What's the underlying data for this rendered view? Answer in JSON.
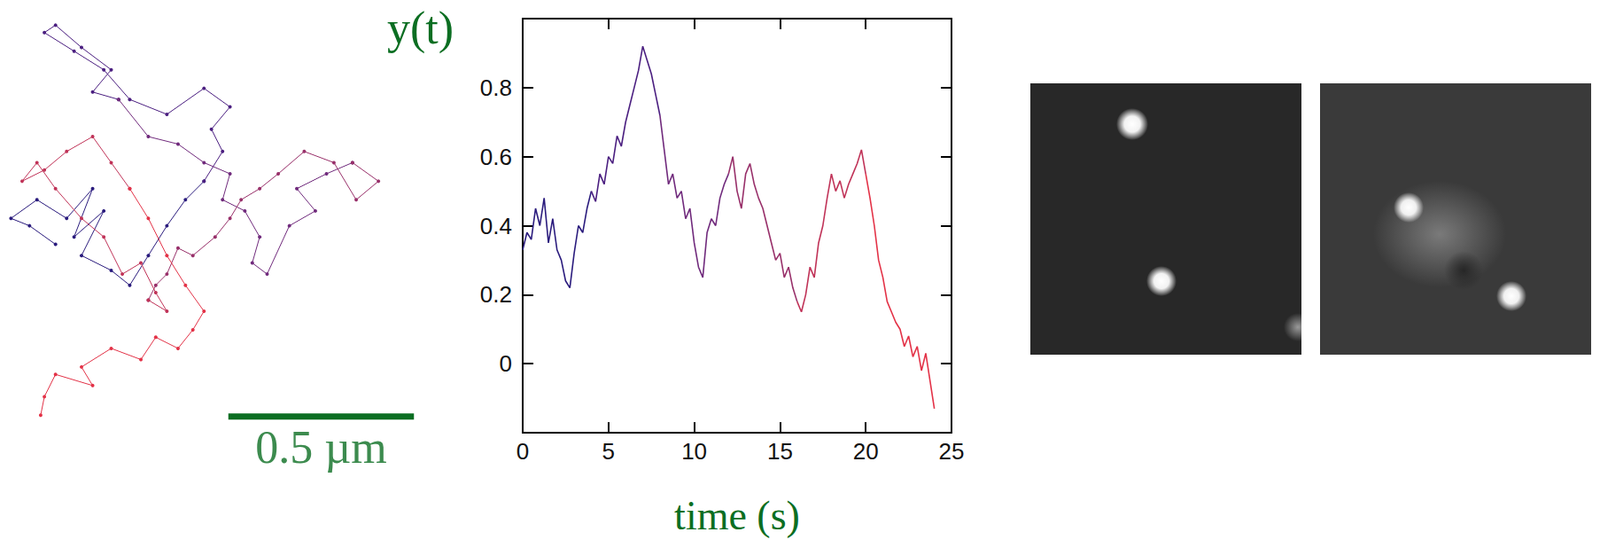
{
  "chart_data": [
    {
      "type": "line",
      "marker": "circle",
      "tick_labels": false,
      "scale_bar": {
        "length": 0.5,
        "label": "0.5 µm"
      },
      "series": [
        {
          "color": "#2a1b7d",
          "x": [
            0.15,
            0.08,
            0.03,
            0.1,
            0.18,
            0.25,
            0.2,
            0.28,
            0.22,
            0.3,
            0.35,
            0.4,
            0.45,
            0.5,
            0.55
          ],
          "values": [
            0.33,
            0.38,
            0.4,
            0.45,
            0.4,
            0.48,
            0.35,
            0.42,
            0.3,
            0.26,
            0.22,
            0.3,
            0.38,
            0.45,
            0.5
          ]
        },
        {
          "color": "#4b1f80",
          "x": [
            0.55,
            0.6,
            0.57,
            0.62,
            0.55,
            0.45,
            0.35,
            0.28,
            0.2,
            0.12,
            0.15,
            0.22,
            0.3,
            0.25,
            0.32
          ],
          "values": [
            0.5,
            0.58,
            0.64,
            0.7,
            0.75,
            0.68,
            0.72,
            0.8,
            0.85,
            0.9,
            0.92,
            0.86,
            0.8,
            0.74,
            0.72
          ]
        },
        {
          "color": "#702a7c",
          "x": [
            0.32,
            0.4,
            0.48,
            0.55,
            0.62,
            0.6,
            0.66,
            0.7,
            0.68,
            0.72,
            0.78,
            0.85,
            0.8,
            0.88,
            0.95
          ],
          "values": [
            0.72,
            0.62,
            0.6,
            0.55,
            0.52,
            0.45,
            0.42,
            0.35,
            0.28,
            0.25,
            0.38,
            0.42,
            0.48,
            0.52,
            0.55
          ]
        },
        {
          "color": "#98306a",
          "x": [
            0.95,
            1.02,
            0.96,
            0.9,
            0.82,
            0.75,
            0.7,
            0.65,
            0.62,
            0.58,
            0.52,
            0.48,
            0.45,
            0.42,
            0.4
          ],
          "values": [
            0.55,
            0.5,
            0.45,
            0.55,
            0.58,
            0.52,
            0.48,
            0.45,
            0.4,
            0.35,
            0.3,
            0.32,
            0.25,
            0.22,
            0.18
          ]
        },
        {
          "color": "#c03358",
          "x": [
            0.4,
            0.45,
            0.42,
            0.38,
            0.33,
            0.28,
            0.22,
            0.15,
            0.1,
            0.06,
            0.12,
            0.18,
            0.25,
            0.3,
            0.35
          ],
          "values": [
            0.18,
            0.15,
            0.2,
            0.28,
            0.25,
            0.35,
            0.4,
            0.48,
            0.55,
            0.5,
            0.53,
            0.58,
            0.62,
            0.55,
            0.48
          ]
        },
        {
          "color": "#e33247",
          "x": [
            0.35,
            0.4,
            0.45,
            0.5,
            0.55,
            0.52,
            0.48,
            0.42,
            0.38,
            0.3,
            0.22,
            0.25,
            0.15,
            0.12,
            0.11
          ],
          "values": [
            0.48,
            0.4,
            0.3,
            0.22,
            0.15,
            0.1,
            0.05,
            0.08,
            0.02,
            0.05,
            0.0,
            -0.05,
            -0.02,
            -0.08,
            -0.13
          ]
        }
      ]
    },
    {
      "type": "line",
      "y_label": "y(t)",
      "x_label": "time (s)",
      "xlim": [
        0,
        25
      ],
      "xticks": [
        0,
        5,
        10,
        15,
        20,
        25
      ],
      "ylim": [
        -0.2,
        1.0
      ],
      "yticks": [
        0,
        0.2,
        0.4,
        0.6,
        0.8
      ],
      "grid": false,
      "series": [
        {
          "color": "#2a1b7d",
          "x": [
            0,
            0.25,
            0.5,
            0.75,
            1,
            1.25,
            1.5,
            1.75,
            2,
            2.25,
            2.5,
            2.75,
            3,
            3.25,
            3.5,
            3.75,
            4
          ],
          "values": [
            0.33,
            0.38,
            0.36,
            0.45,
            0.4,
            0.48,
            0.35,
            0.42,
            0.33,
            0.3,
            0.24,
            0.22,
            0.32,
            0.4,
            0.38,
            0.45,
            0.5
          ]
        },
        {
          "color": "#4b1f80",
          "x": [
            4,
            4.25,
            4.5,
            4.75,
            5,
            5.25,
            5.5,
            5.75,
            6,
            6.25,
            6.5,
            6.75,
            7,
            7.25,
            7.5,
            7.75,
            8
          ],
          "values": [
            0.5,
            0.47,
            0.55,
            0.52,
            0.6,
            0.58,
            0.66,
            0.63,
            0.7,
            0.75,
            0.8,
            0.85,
            0.92,
            0.88,
            0.84,
            0.78,
            0.72
          ]
        },
        {
          "color": "#702a7c",
          "x": [
            8,
            8.25,
            8.5,
            8.75,
            9,
            9.25,
            9.5,
            9.75,
            10,
            10.25,
            10.5,
            10.75,
            11,
            11.25,
            11.5,
            11.75,
            12
          ],
          "values": [
            0.72,
            0.62,
            0.52,
            0.55,
            0.48,
            0.5,
            0.42,
            0.45,
            0.35,
            0.28,
            0.25,
            0.38,
            0.42,
            0.4,
            0.48,
            0.52,
            0.55
          ]
        },
        {
          "color": "#98306a",
          "x": [
            12,
            12.25,
            12.5,
            12.75,
            13,
            13.25,
            13.5,
            13.75,
            14,
            14.25,
            14.5,
            14.75,
            15,
            15.25,
            15.5,
            15.75,
            16
          ],
          "values": [
            0.55,
            0.6,
            0.5,
            0.45,
            0.55,
            0.58,
            0.52,
            0.48,
            0.45,
            0.4,
            0.35,
            0.3,
            0.32,
            0.25,
            0.28,
            0.22,
            0.18
          ]
        },
        {
          "color": "#c03358",
          "x": [
            16,
            16.25,
            16.5,
            16.75,
            17,
            17.25,
            17.5,
            17.75,
            18,
            18.25,
            18.5,
            18.75,
            19,
            19.25,
            19.5,
            19.75,
            20
          ],
          "values": [
            0.18,
            0.15,
            0.2,
            0.28,
            0.25,
            0.35,
            0.4,
            0.48,
            0.55,
            0.5,
            0.53,
            0.48,
            0.52,
            0.55,
            0.58,
            0.62,
            0.55
          ]
        },
        {
          "color": "#e33247",
          "x": [
            20,
            20.25,
            20.5,
            20.75,
            21,
            21.25,
            21.5,
            21.75,
            22,
            22.25,
            22.5,
            22.75,
            23,
            23.25,
            23.5,
            23.75,
            24
          ],
          "values": [
            0.55,
            0.48,
            0.4,
            0.3,
            0.25,
            0.18,
            0.15,
            0.12,
            0.1,
            0.05,
            0.08,
            0.02,
            0.05,
            -0.02,
            0.03,
            -0.05,
            -0.13
          ]
        }
      ]
    }
  ]
}
